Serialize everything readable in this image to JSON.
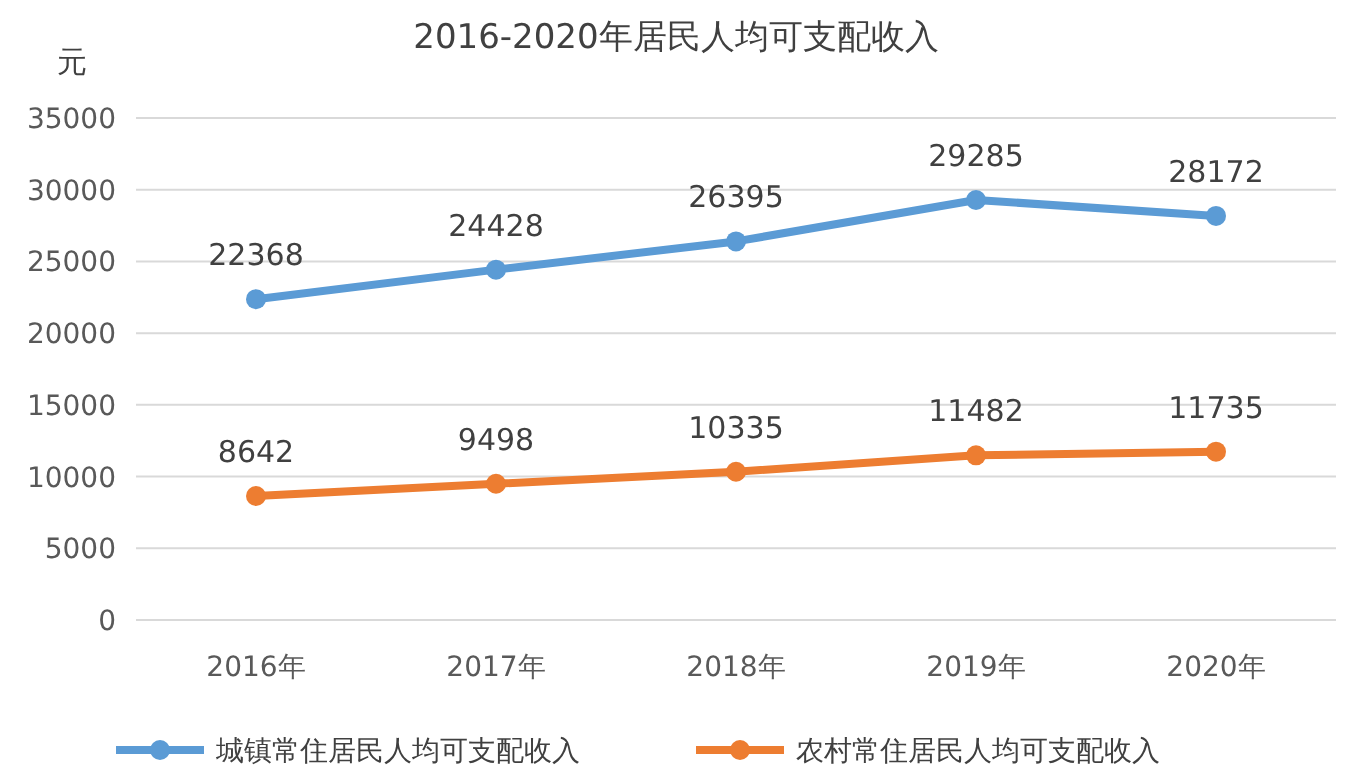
{
  "chart_data": {
    "type": "line",
    "title": "2016-2020年居民人均可支配收入",
    "ylabel": "元",
    "categories": [
      "2016年",
      "2017年",
      "2018年",
      "2019年",
      "2020年"
    ],
    "series": [
      {
        "name": "城镇常住居民人均可支配收入",
        "color": "#5b9bd5",
        "values": [
          22368,
          24428,
          26395,
          29285,
          28172
        ]
      },
      {
        "name": "农村常住居民人均可支配收入",
        "color": "#ed7d31",
        "values": [
          8642,
          9498,
          10335,
          11482,
          11735
        ]
      }
    ],
    "ylim": [
      0,
      35000
    ],
    "yticks": [
      0,
      5000,
      10000,
      15000,
      20000,
      25000,
      30000,
      35000
    ],
    "grid": "y",
    "legend": "bottom",
    "marker": "circle",
    "line_style": "solid",
    "data_labels": true
  }
}
